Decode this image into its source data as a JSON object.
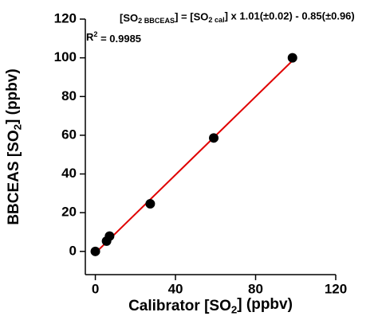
{
  "chart_data": {
    "type": "scatter",
    "annotation": [
      "[SO",
      "2 BBCEAS",
      "] = [SO",
      "2 cal",
      "] x 1.01(±0.02) - 0.85(±0.96)"
    ],
    "r_squared": [
      "R",
      "2",
      " = 0.9985"
    ],
    "x_label": [
      "Calibrator [SO",
      "2",
      "] (ppbv)"
    ],
    "y_label": [
      "BBCEAS [SO",
      "2",
      "] (ppbv)"
    ],
    "x": [
      0,
      5.6,
      7.1,
      27.4,
      59.1,
      98.4
    ],
    "series": [
      {
        "color": "#000000",
        "values": [
          0,
          5.3,
          7.9,
          24.6,
          58.6,
          100
        ]
      }
    ],
    "fit": {
      "slope": 1.01,
      "intercept": -0.85,
      "color": "#e00000",
      "x": [
        0,
        99
      ]
    },
    "xlim": [
      -5,
      120
    ],
    "xticks": [
      0,
      40,
      80,
      120
    ],
    "ylim": [
      -12,
      120
    ],
    "yticks": [
      0,
      20,
      40,
      60,
      80,
      100,
      120
    ]
  }
}
